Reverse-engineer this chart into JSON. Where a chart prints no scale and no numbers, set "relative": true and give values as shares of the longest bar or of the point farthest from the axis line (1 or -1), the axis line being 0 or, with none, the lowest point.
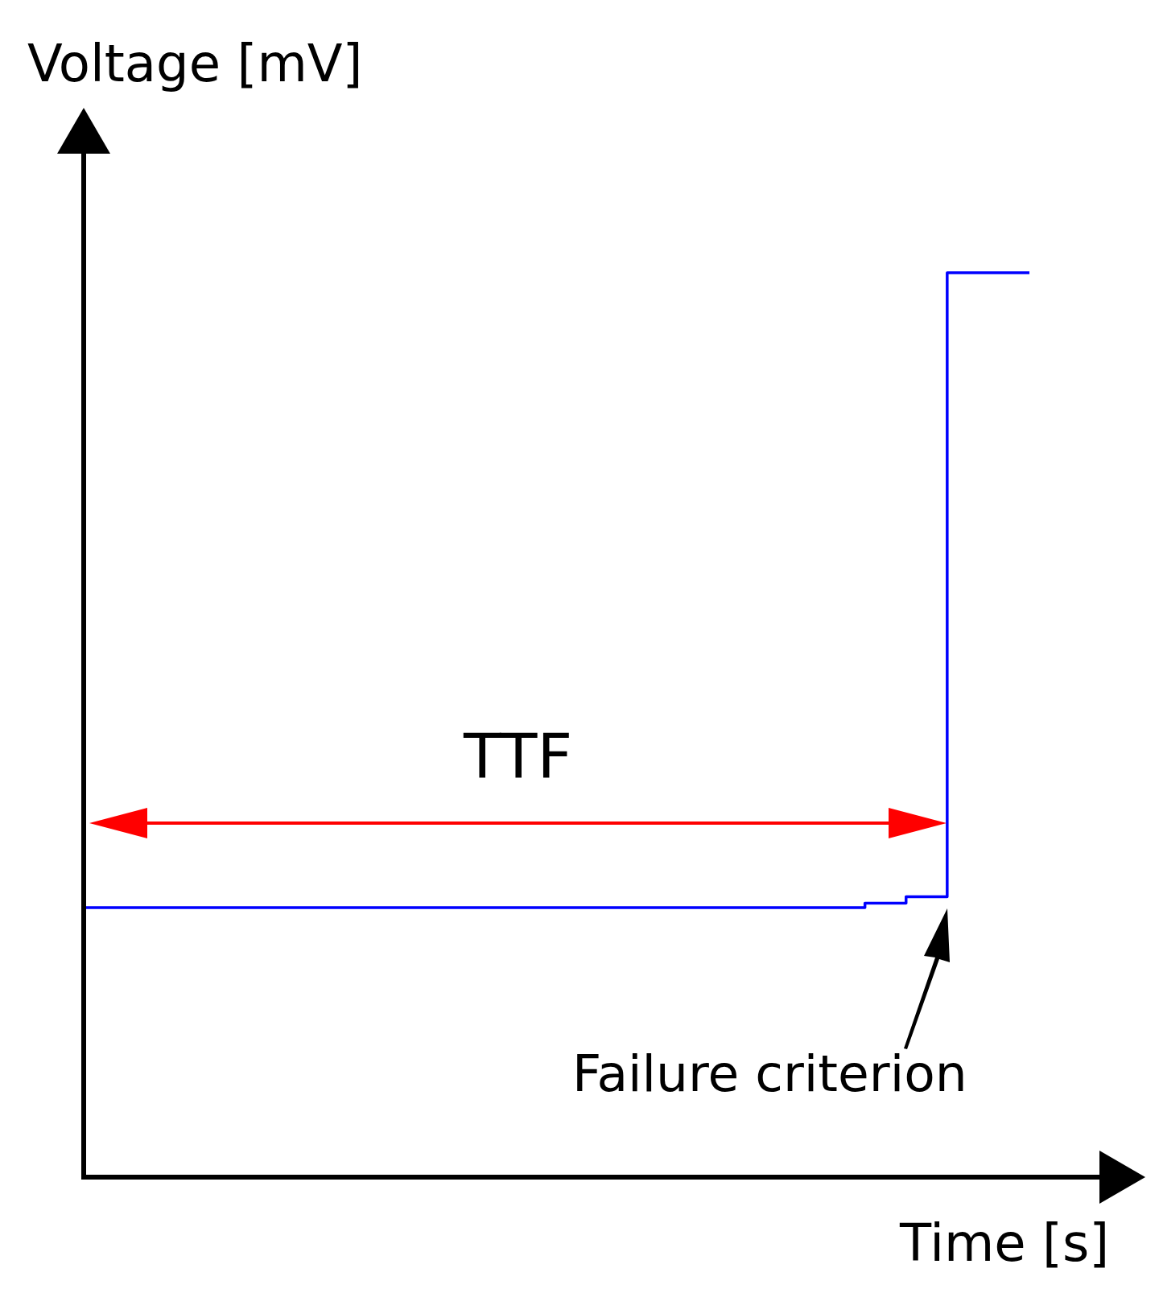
{
  "chart_data": {
    "type": "step",
    "relative": true,
    "xlabel": "Time [s]",
    "ylabel": "Voltage [mV]",
    "categories": [
      null,
      null,
      null,
      null,
      null,
      null,
      null,
      null,
      null,
      null,
      null,
      null,
      null,
      null,
      null,
      null,
      null,
      null,
      null,
      null,
      null,
      null,
      null,
      null
    ],
    "series": [
      {
        "color": "#0000ff",
        "values": [
          0.298,
          0.298,
          0.298,
          0.298,
          0.298,
          0.298,
          0.298,
          0.298,
          0.298,
          0.298,
          0.298,
          0.298,
          0.298,
          0.298,
          0.298,
          0.298,
          0.298,
          0.298,
          0.298,
          0.303,
          0.31,
          1,
          1,
          1
        ]
      }
    ],
    "annotations": [
      "TTF",
      "Failure criterion"
    ]
  }
}
